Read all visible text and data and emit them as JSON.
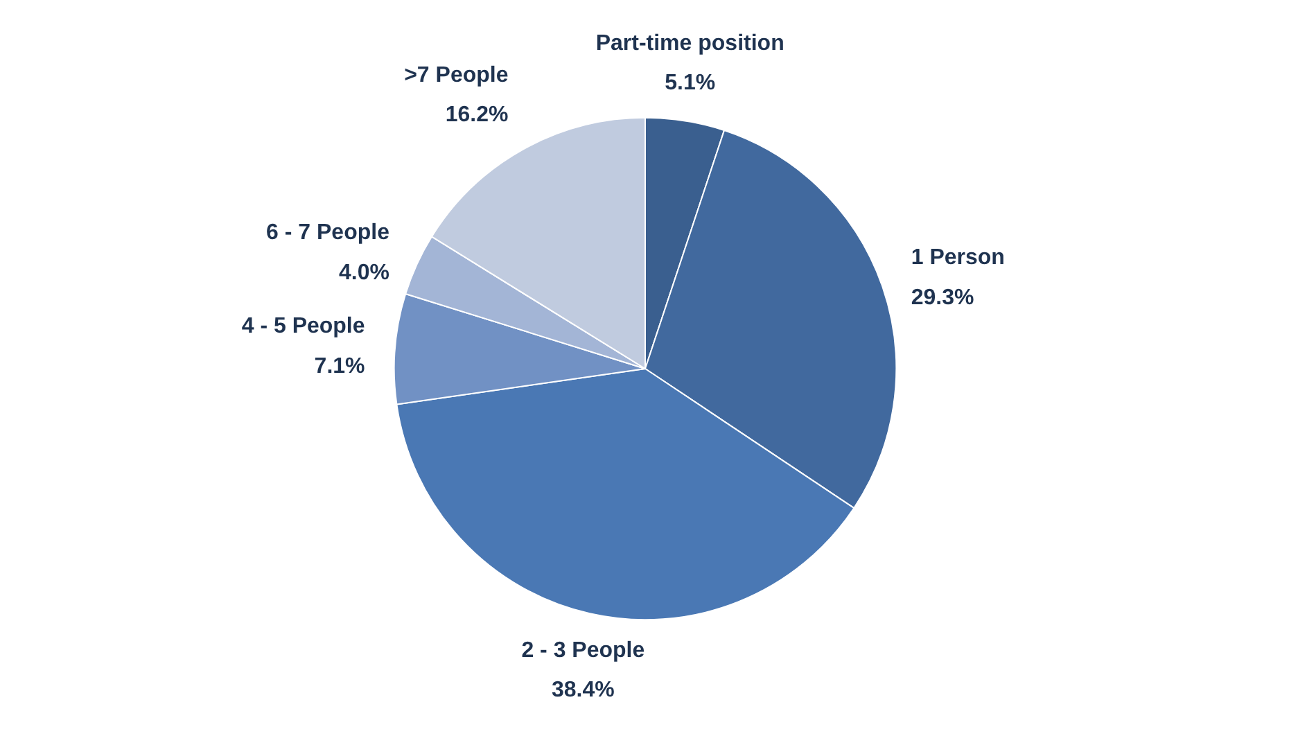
{
  "chart_data": {
    "type": "pie",
    "categories": [
      "Part-time position",
      "1 Person",
      "2 - 3 People",
      "4 - 5 People",
      "6 - 7 People",
      ">7 People"
    ],
    "values": [
      5.1,
      29.3,
      38.4,
      7.1,
      4.0,
      16.2
    ],
    "colors": [
      "#3a5f8f",
      "#41699e",
      "#4a78b4",
      "#7191c4",
      "#a3b5d6",
      "#c0cbdf"
    ],
    "value_labels": [
      "5.1%",
      "29.3%",
      "38.4%",
      "7.1%",
      "4.0%",
      "16.2%"
    ],
    "legend": false
  }
}
